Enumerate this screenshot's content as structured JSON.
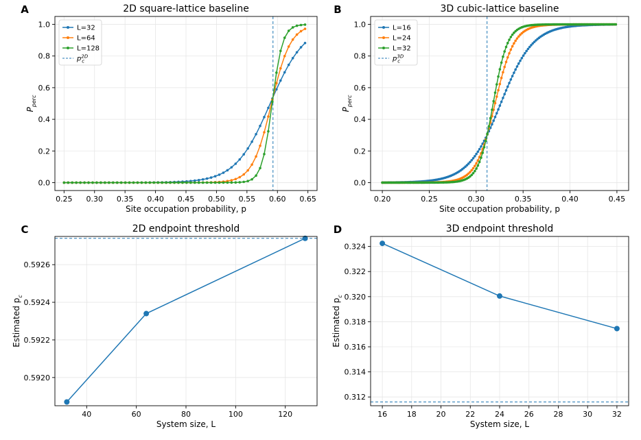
{
  "chart_data": [
    {
      "id": "A",
      "panel_letter": "A",
      "type": "line",
      "title": "2D square-lattice baseline",
      "xlabel": "Site occupation probability, p",
      "ylabel_main": "P",
      "ylabel_sub": "perc",
      "xlim": [
        0.235,
        0.665
      ],
      "ylim": [
        -0.05,
        1.05
      ],
      "xticks": [
        0.25,
        0.3,
        0.35,
        0.4,
        0.45,
        0.5,
        0.55,
        0.6,
        0.65
      ],
      "xtick_labels": [
        "0.25",
        "0.30",
        "0.35",
        "0.40",
        "0.45",
        "0.50",
        "0.55",
        "0.60",
        "0.65"
      ],
      "yticks": [
        0.0,
        0.2,
        0.4,
        0.6,
        0.8,
        1.0
      ],
      "ytick_labels": [
        "0.0",
        "0.2",
        "0.4",
        "0.6",
        "0.8",
        "1.0"
      ],
      "grid": true,
      "legend_position": "top-left",
      "sigmoid_series": [
        {
          "name": "L=32",
          "color": "#1f77b4",
          "center": 0.5927,
          "width": 0.0284,
          "y_at_center": 0.54,
          "x_start": 0.25,
          "x_end": 0.65,
          "step": 0.0067
        },
        {
          "name": "L=64",
          "color": "#ff7f0e",
          "center": 0.5927,
          "width": 0.0156,
          "y_at_center": 0.54,
          "x_start": 0.25,
          "x_end": 0.65,
          "step": 0.0067
        },
        {
          "name": "L=128",
          "color": "#2ca02c",
          "center": 0.5927,
          "width": 0.0086,
          "y_at_center": 0.54,
          "x_start": 0.25,
          "x_end": 0.65,
          "step": 0.0067
        }
      ],
      "vline": {
        "x": 0.5927,
        "label_main": "p",
        "label_sub": "c",
        "label_sup": "2D",
        "color": "#1f77b4"
      }
    },
    {
      "id": "B",
      "panel_letter": "B",
      "type": "line",
      "title": "3D cubic-lattice baseline",
      "xlabel": "Site occupation probability, p",
      "ylabel_main": "P",
      "ylabel_sub": "perc",
      "xlim": [
        0.1875,
        0.4625
      ],
      "ylim": [
        -0.05,
        1.05
      ],
      "xticks": [
        0.2,
        0.25,
        0.3,
        0.35,
        0.4,
        0.45
      ],
      "xtick_labels": [
        "0.20",
        "0.25",
        "0.30",
        "0.35",
        "0.40",
        "0.45"
      ],
      "yticks": [
        0.0,
        0.2,
        0.4,
        0.6,
        0.8,
        1.0
      ],
      "ytick_labels": [
        "0.0",
        "0.2",
        "0.4",
        "0.6",
        "0.8",
        "1.0"
      ],
      "grid": true,
      "legend_position": "top-left",
      "sigmoid_series": [
        {
          "name": "L=16",
          "color": "#1f77b4",
          "center": 0.3116,
          "width": 0.0172,
          "y_at_center": 0.3,
          "x_start": 0.2,
          "x_end": 0.45,
          "step": 0.00167
        },
        {
          "name": "L=24",
          "color": "#ff7f0e",
          "center": 0.3116,
          "width": 0.0101,
          "y_at_center": 0.3,
          "x_start": 0.2,
          "x_end": 0.45,
          "step": 0.00167
        },
        {
          "name": "L=32",
          "color": "#2ca02c",
          "center": 0.3116,
          "width": 0.0077,
          "y_at_center": 0.3,
          "x_start": 0.2,
          "x_end": 0.45,
          "step": 0.00167
        }
      ],
      "vline": {
        "x": 0.3116,
        "label_main": "p",
        "label_sub": "c",
        "label_sup": "3D",
        "color": "#1f77b4"
      }
    },
    {
      "id": "C",
      "panel_letter": "C",
      "type": "line",
      "title": "2D endpoint threshold",
      "xlabel": "System size, L",
      "ylabel_main": "Estimated p",
      "ylabel_sub": "c",
      "xlim": [
        27.2,
        132.8
      ],
      "ylim": [
        0.59185,
        0.59275
      ],
      "xticks": [
        40,
        60,
        80,
        100,
        120
      ],
      "xtick_labels": [
        "40",
        "60",
        "80",
        "100",
        "120"
      ],
      "yticks": [
        0.592,
        0.5922,
        0.5924,
        0.5926
      ],
      "ytick_labels": [
        "0.5920",
        "0.5922",
        "0.5924",
        "0.5926"
      ],
      "grid": true,
      "series": [
        {
          "name": "",
          "color": "#1f77b4",
          "x": [
            32,
            64,
            128
          ],
          "y": [
            0.59187,
            0.59234,
            0.59274
          ]
        }
      ],
      "hline": {
        "y": 0.59274,
        "color": "#1f77b4"
      }
    },
    {
      "id": "D",
      "panel_letter": "D",
      "type": "line",
      "title": "3D endpoint threshold",
      "xlabel": "System size, L",
      "ylabel_main": "Estimated p",
      "ylabel_sub": "c",
      "xlim": [
        15.2,
        32.8
      ],
      "ylim": [
        0.3113,
        0.3248
      ],
      "xticks": [
        16,
        18,
        20,
        22,
        24,
        26,
        28,
        30,
        32
      ],
      "xtick_labels": [
        "16",
        "18",
        "20",
        "22",
        "24",
        "26",
        "28",
        "30",
        "32"
      ],
      "yticks": [
        0.312,
        0.314,
        0.316,
        0.318,
        0.32,
        0.322,
        0.324
      ],
      "ytick_labels": [
        "0.312",
        "0.314",
        "0.316",
        "0.318",
        "0.320",
        "0.322",
        "0.324"
      ],
      "grid": true,
      "series": [
        {
          "name": "",
          "color": "#1f77b4",
          "x": [
            16,
            24,
            32
          ],
          "y": [
            0.32425,
            0.32005,
            0.31745
          ]
        }
      ],
      "hline": {
        "y": 0.3116,
        "color": "#1f77b4"
      }
    }
  ]
}
